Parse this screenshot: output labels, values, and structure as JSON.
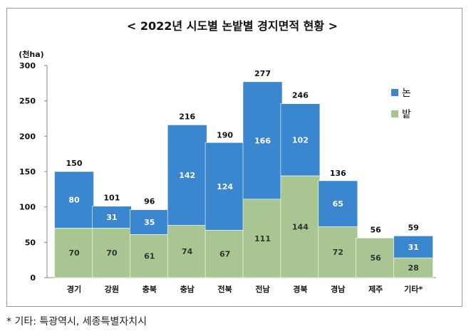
{
  "chart_data": {
    "type": "bar",
    "stacked": true,
    "title": "< 2022년 시도별 논밭별 경지면적 현황 >",
    "unit_label": "(천ha)",
    "categories": [
      "경기",
      "강원",
      "충북",
      "충남",
      "전북",
      "전남",
      "경북",
      "경남",
      "제주",
      "기타*"
    ],
    "series": [
      {
        "name": "밭",
        "color": "#a9c592",
        "values": [
          70,
          70,
          61,
          74,
          67,
          111,
          144,
          72,
          56,
          28
        ]
      },
      {
        "name": "논",
        "color": "#3a86cf",
        "values": [
          80,
          31,
          35,
          142,
          124,
          166,
          102,
          65,
          0,
          31
        ]
      }
    ],
    "totals": [
      150,
      101,
      96,
      216,
      190,
      277,
      246,
      136,
      56,
      59
    ],
    "yticks": [
      0,
      50,
      100,
      150,
      200,
      250,
      300
    ],
    "ylim": [
      0,
      300
    ],
    "grid": false,
    "legend_position": "right"
  },
  "footnote": "* 기타: 특광역시, 세종특별자치시"
}
